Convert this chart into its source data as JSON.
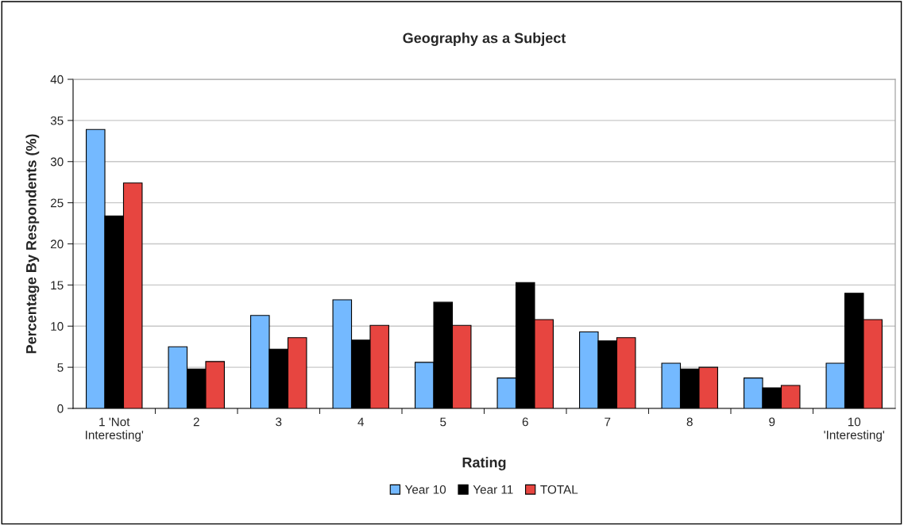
{
  "chart_data": {
    "type": "bar",
    "title": "Geography as a Subject",
    "xlabel": "Rating",
    "ylabel": "Percentage By Respondents (%)",
    "categories": [
      "1 'Not\nInteresting'",
      "2",
      "3",
      "4",
      "5",
      "6",
      "7",
      "8",
      "9",
      "10\n'Interesting'"
    ],
    "series": [
      {
        "name": "Year 10",
        "color": "#74b9ff",
        "values": [
          33.9,
          7.5,
          11.3,
          13.2,
          5.6,
          3.7,
          9.3,
          5.5,
          3.7,
          5.5
        ]
      },
      {
        "name": "Year 11",
        "color": "#000000",
        "values": [
          23.4,
          4.8,
          7.2,
          8.3,
          12.9,
          15.3,
          8.2,
          4.8,
          2.5,
          14.0
        ]
      },
      {
        "name": "TOTAL",
        "color": "#e74540",
        "values": [
          27.4,
          5.7,
          8.6,
          10.1,
          10.1,
          10.8,
          8.6,
          5.0,
          2.8,
          10.8
        ]
      }
    ],
    "ylim": [
      0,
      40
    ],
    "yticks": [
      0,
      5,
      10,
      15,
      20,
      25,
      30,
      35,
      40
    ],
    "grid": "y",
    "legend": "bottom"
  }
}
